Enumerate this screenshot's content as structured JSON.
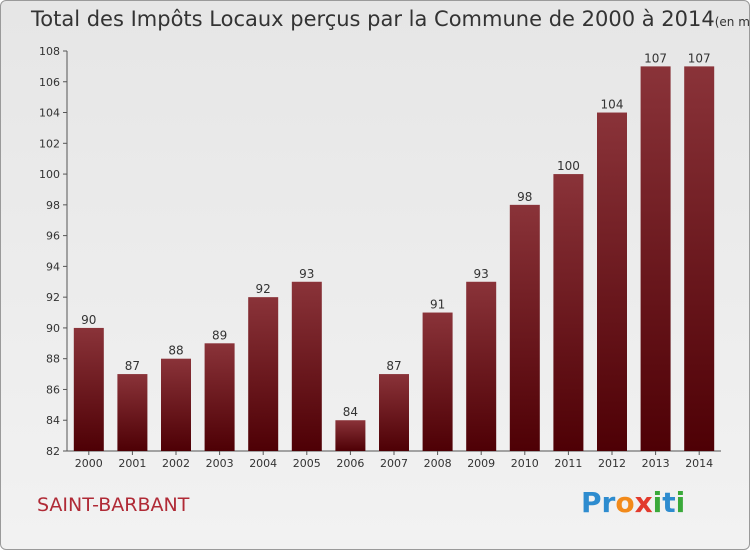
{
  "title": "Total des Impôts Locaux perçus par la Commune de 2000 à 2014",
  "unit_label": "(en milliers d'€)",
  "commune": "SAINT-BARBANT",
  "logo": {
    "letters": [
      "P",
      "r",
      "o",
      "x",
      "i",
      "t",
      "i"
    ],
    "colors": [
      "#2e8ccf",
      "#2e8ccf",
      "#f28a1a",
      "#e23a2c",
      "#3aa93a",
      "#2e8ccf",
      "#3aa93a"
    ]
  },
  "colors": {
    "bar_top": "#8a3339",
    "bar_bottom": "#4e0005",
    "label": "#333333"
  },
  "chart_data": {
    "type": "bar",
    "title": "Total des Impôts Locaux perçus par la Commune de 2000 à 2014",
    "xlabel": "",
    "ylabel": "",
    "categories": [
      "2000",
      "2001",
      "2002",
      "2003",
      "2004",
      "2005",
      "2006",
      "2007",
      "2008",
      "2009",
      "2010",
      "2011",
      "2012",
      "2013",
      "2014"
    ],
    "values": [
      90,
      87,
      88,
      89,
      92,
      93,
      84,
      87,
      91,
      93,
      98,
      100,
      104,
      107,
      107
    ],
    "ylim": [
      82,
      108
    ],
    "yticks": [
      82,
      84,
      86,
      88,
      90,
      92,
      94,
      96,
      98,
      100,
      102,
      104,
      106,
      108
    ],
    "grid": false
  }
}
